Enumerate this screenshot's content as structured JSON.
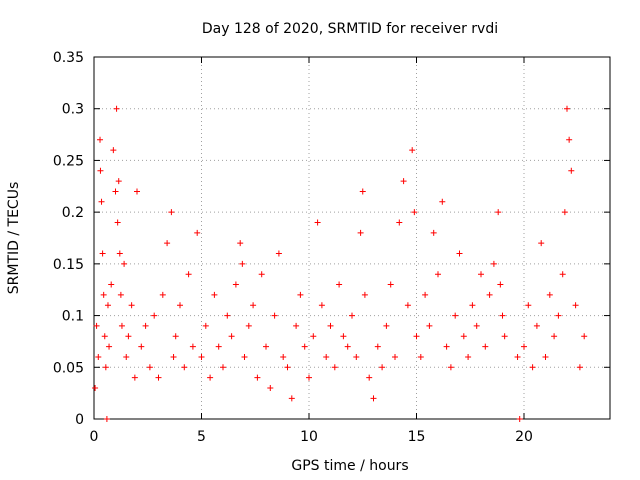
{
  "chart_data": {
    "type": "scatter",
    "title": "Day 128 of 2020, SRMTID for receiver rvdi",
    "xlabel": "GPS time / hours",
    "ylabel": "SRMTID / TECUs",
    "xlim": [
      0,
      24
    ],
    "ylim": [
      0,
      0.35
    ],
    "xticks": [
      0,
      5,
      10,
      15,
      20
    ],
    "yticks": [
      0,
      0.05,
      0.1,
      0.15,
      0.2,
      0.25,
      0.3,
      0.35
    ],
    "xtick_labels": [
      "0",
      "5",
      "10",
      "15",
      "20"
    ],
    "ytick_labels": [
      "0",
      "0.05",
      "0.1",
      "0.15",
      "0.2",
      "0.25",
      "0.3",
      "0.35"
    ],
    "grid": true,
    "marker": "+",
    "color": "#ff0000",
    "series": [
      {
        "x": [
          0.05,
          0.12,
          0.2,
          0.28,
          0.3,
          0.35,
          0.4,
          0.45,
          0.5,
          0.55,
          0.6,
          0.65,
          0.7,
          0.8,
          0.9,
          1.0,
          1.05,
          1.1,
          1.15,
          1.2,
          1.25,
          1.3,
          1.4,
          1.5,
          1.6,
          1.75,
          1.9,
          2.0,
          2.2,
          2.4,
          2.6,
          2.8,
          3.0,
          3.2,
          3.4,
          3.6,
          3.7,
          3.8,
          4.0,
          4.2,
          4.4,
          4.6,
          4.8,
          5.0,
          5.2,
          5.4,
          5.6,
          5.8,
          6.0,
          6.2,
          6.4,
          6.6,
          6.8,
          6.9,
          7.0,
          7.2,
          7.4,
          7.6,
          7.8,
          8.0,
          8.2,
          8.4,
          8.6,
          8.8,
          9.0,
          9.2,
          9.4,
          9.6,
          9.8,
          10.0,
          10.2,
          10.4,
          10.6,
          10.8,
          11.0,
          11.2,
          11.4,
          11.6,
          11.8,
          12.0,
          12.2,
          12.4,
          12.5,
          12.6,
          12.8,
          13.0,
          13.2,
          13.4,
          13.6,
          13.8,
          14.0,
          14.2,
          14.4,
          14.6,
          14.8,
          14.9,
          15.0,
          15.2,
          15.4,
          15.6,
          15.8,
          16.0,
          16.2,
          16.4,
          16.6,
          16.8,
          17.0,
          17.2,
          17.4,
          17.6,
          17.8,
          18.0,
          18.2,
          18.4,
          18.6,
          18.8,
          18.9,
          19.0,
          19.1,
          19.7,
          19.8,
          20.0,
          20.2,
          20.4,
          20.6,
          20.8,
          21.0,
          21.2,
          21.4,
          21.6,
          21.8,
          21.9,
          22.0,
          22.1,
          22.2,
          22.4,
          22.6,
          22.8
        ],
        "y": [
          0.03,
          0.09,
          0.06,
          0.27,
          0.24,
          0.21,
          0.16,
          0.12,
          0.08,
          0.05,
          0.0,
          0.11,
          0.07,
          0.13,
          0.26,
          0.22,
          0.3,
          0.19,
          0.23,
          0.16,
          0.12,
          0.09,
          0.15,
          0.06,
          0.08,
          0.11,
          0.04,
          0.22,
          0.07,
          0.09,
          0.05,
          0.1,
          0.04,
          0.12,
          0.17,
          0.2,
          0.06,
          0.08,
          0.11,
          0.05,
          0.14,
          0.07,
          0.18,
          0.06,
          0.09,
          0.04,
          0.12,
          0.07,
          0.05,
          0.1,
          0.08,
          0.13,
          0.17,
          0.15,
          0.06,
          0.09,
          0.11,
          0.04,
          0.14,
          0.07,
          0.03,
          0.1,
          0.16,
          0.06,
          0.05,
          0.02,
          0.09,
          0.12,
          0.07,
          0.04,
          0.08,
          0.19,
          0.11,
          0.06,
          0.09,
          0.05,
          0.13,
          0.08,
          0.07,
          0.1,
          0.06,
          0.18,
          0.22,
          0.12,
          0.04,
          0.02,
          0.07,
          0.05,
          0.09,
          0.13,
          0.06,
          0.19,
          0.23,
          0.11,
          0.26,
          0.2,
          0.08,
          0.06,
          0.12,
          0.09,
          0.18,
          0.14,
          0.21,
          0.07,
          0.05,
          0.1,
          0.16,
          0.08,
          0.06,
          0.11,
          0.09,
          0.14,
          0.07,
          0.12,
          0.15,
          0.2,
          0.13,
          0.1,
          0.08,
          0.06,
          0.0,
          0.07,
          0.11,
          0.05,
          0.09,
          0.17,
          0.06,
          0.12,
          0.08,
          0.1,
          0.14,
          0.2,
          0.3,
          0.27,
          0.24,
          0.11,
          0.05,
          0.08
        ]
      }
    ],
    "annotations": []
  }
}
